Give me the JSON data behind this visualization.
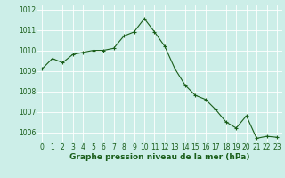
{
  "x": [
    0,
    1,
    2,
    3,
    4,
    5,
    6,
    7,
    8,
    9,
    10,
    11,
    12,
    13,
    14,
    15,
    16,
    17,
    18,
    19,
    20,
    21,
    22,
    23
  ],
  "y": [
    1009.1,
    1009.6,
    1009.4,
    1009.8,
    1009.9,
    1010.0,
    1010.0,
    1010.1,
    1010.7,
    1010.9,
    1011.55,
    1010.9,
    1010.2,
    1009.1,
    1008.3,
    1007.8,
    1007.6,
    1007.1,
    1006.5,
    1006.2,
    1006.8,
    1005.7,
    1005.8,
    1005.75
  ],
  "line_color": "#1a5e1a",
  "marker_color": "#1a5e1a",
  "bg_color": "#cceee8",
  "grid_color": "#ffffff",
  "xlabel": "Graphe pression niveau de la mer (hPa)",
  "ylim": [
    1005.5,
    1012.2
  ],
  "xlim": [
    -0.5,
    23.5
  ],
  "yticks": [
    1006,
    1007,
    1008,
    1009,
    1010,
    1011,
    1012
  ],
  "xticks": [
    0,
    1,
    2,
    3,
    4,
    5,
    6,
    7,
    8,
    9,
    10,
    11,
    12,
    13,
    14,
    15,
    16,
    17,
    18,
    19,
    20,
    21,
    22,
    23
  ],
  "xlabel_fontsize": 6.5,
  "tick_fontsize": 5.5,
  "xlabel_color": "#1a5e1a",
  "linewidth": 0.8,
  "markersize": 3.0
}
